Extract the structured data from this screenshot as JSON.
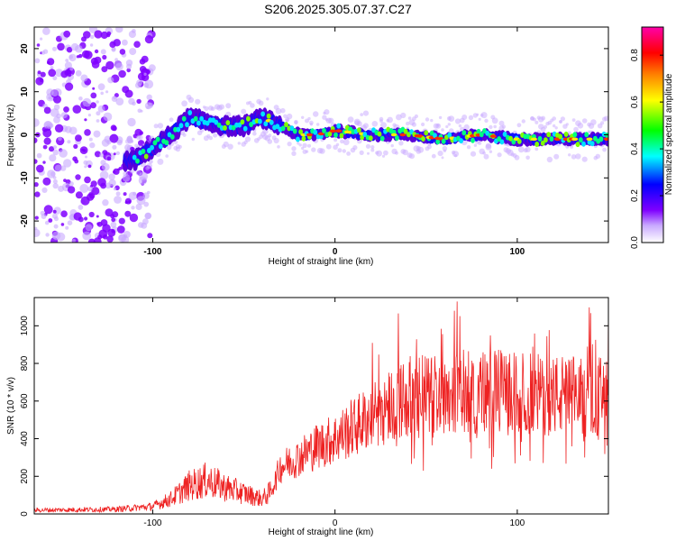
{
  "title": "S206.2025.305.07.37.C27",
  "chart_data": [
    {
      "type": "heatmap",
      "name": "spectrogram",
      "xlabel": "Height of straight line (km)",
      "ylabel": "Frequency (Hz)",
      "xlim": [
        -165,
        150
      ],
      "ylim": [
        -25,
        25
      ],
      "xticks": [
        -100,
        0,
        100
      ],
      "xtick_labels": [
        "-100",
        "0",
        "100"
      ],
      "yticks": [
        20,
        10,
        0,
        -10,
        -20
      ],
      "ytick_labels": [
        "20",
        "10",
        "0",
        "-10",
        "-20"
      ],
      "colorbar": {
        "label": "Normalized spectral amplitude",
        "range": [
          0,
          0.92
        ],
        "ticks": [
          0.0,
          0.2,
          0.4,
          0.6,
          0.8
        ],
        "tick_labels": [
          "0.0",
          "0.2",
          "0.4",
          "0.6",
          "0.8"
        ],
        "colors": [
          "#ffffff",
          "#7f00ff",
          "#0000ff",
          "#00ffff",
          "#00ff00",
          "#ffff00",
          "#ff8000",
          "#ff0000",
          "#ff00aa"
        ]
      },
      "ridge": {
        "x": [
          -110,
          -100,
          -90,
          -80,
          -70,
          -60,
          -50,
          -40,
          -30,
          -20,
          -10,
          0,
          20,
          40,
          60,
          80,
          100,
          120,
          140,
          150
        ],
        "freq": [
          -6,
          -3,
          0,
          4,
          3,
          2,
          2,
          4,
          2,
          0,
          0,
          1,
          0,
          0,
          -1,
          0,
          -1,
          -1,
          -1,
          -1
        ]
      }
    },
    {
      "type": "line",
      "name": "snr",
      "xlabel": "Height of straight line (km)",
      "ylabel": "SNR (10 * v/v)",
      "xlim": [
        -165,
        150
      ],
      "ylim": [
        0,
        1150
      ],
      "xticks": [
        -100,
        0,
        100
      ],
      "xtick_labels": [
        "-100",
        "0",
        "100"
      ],
      "yticks": [
        0,
        200,
        400,
        600,
        800,
        1000
      ],
      "ytick_labels": [
        "0",
        "200",
        "400",
        "600",
        "800",
        "1000"
      ],
      "color": "#ee2222",
      "envelope": {
        "x": [
          -165,
          -120,
          -100,
          -90,
          -80,
          -70,
          -60,
          -50,
          -40,
          -35,
          -30,
          -20,
          -10,
          0,
          10,
          20,
          30,
          40,
          60,
          80,
          100,
          120,
          140,
          150
        ],
        "snr": [
          20,
          25,
          40,
          80,
          150,
          180,
          140,
          110,
          80,
          120,
          250,
          300,
          360,
          400,
          460,
          520,
          580,
          620,
          650,
          650,
          640,
          630,
          620,
          630
        ]
      }
    }
  ]
}
